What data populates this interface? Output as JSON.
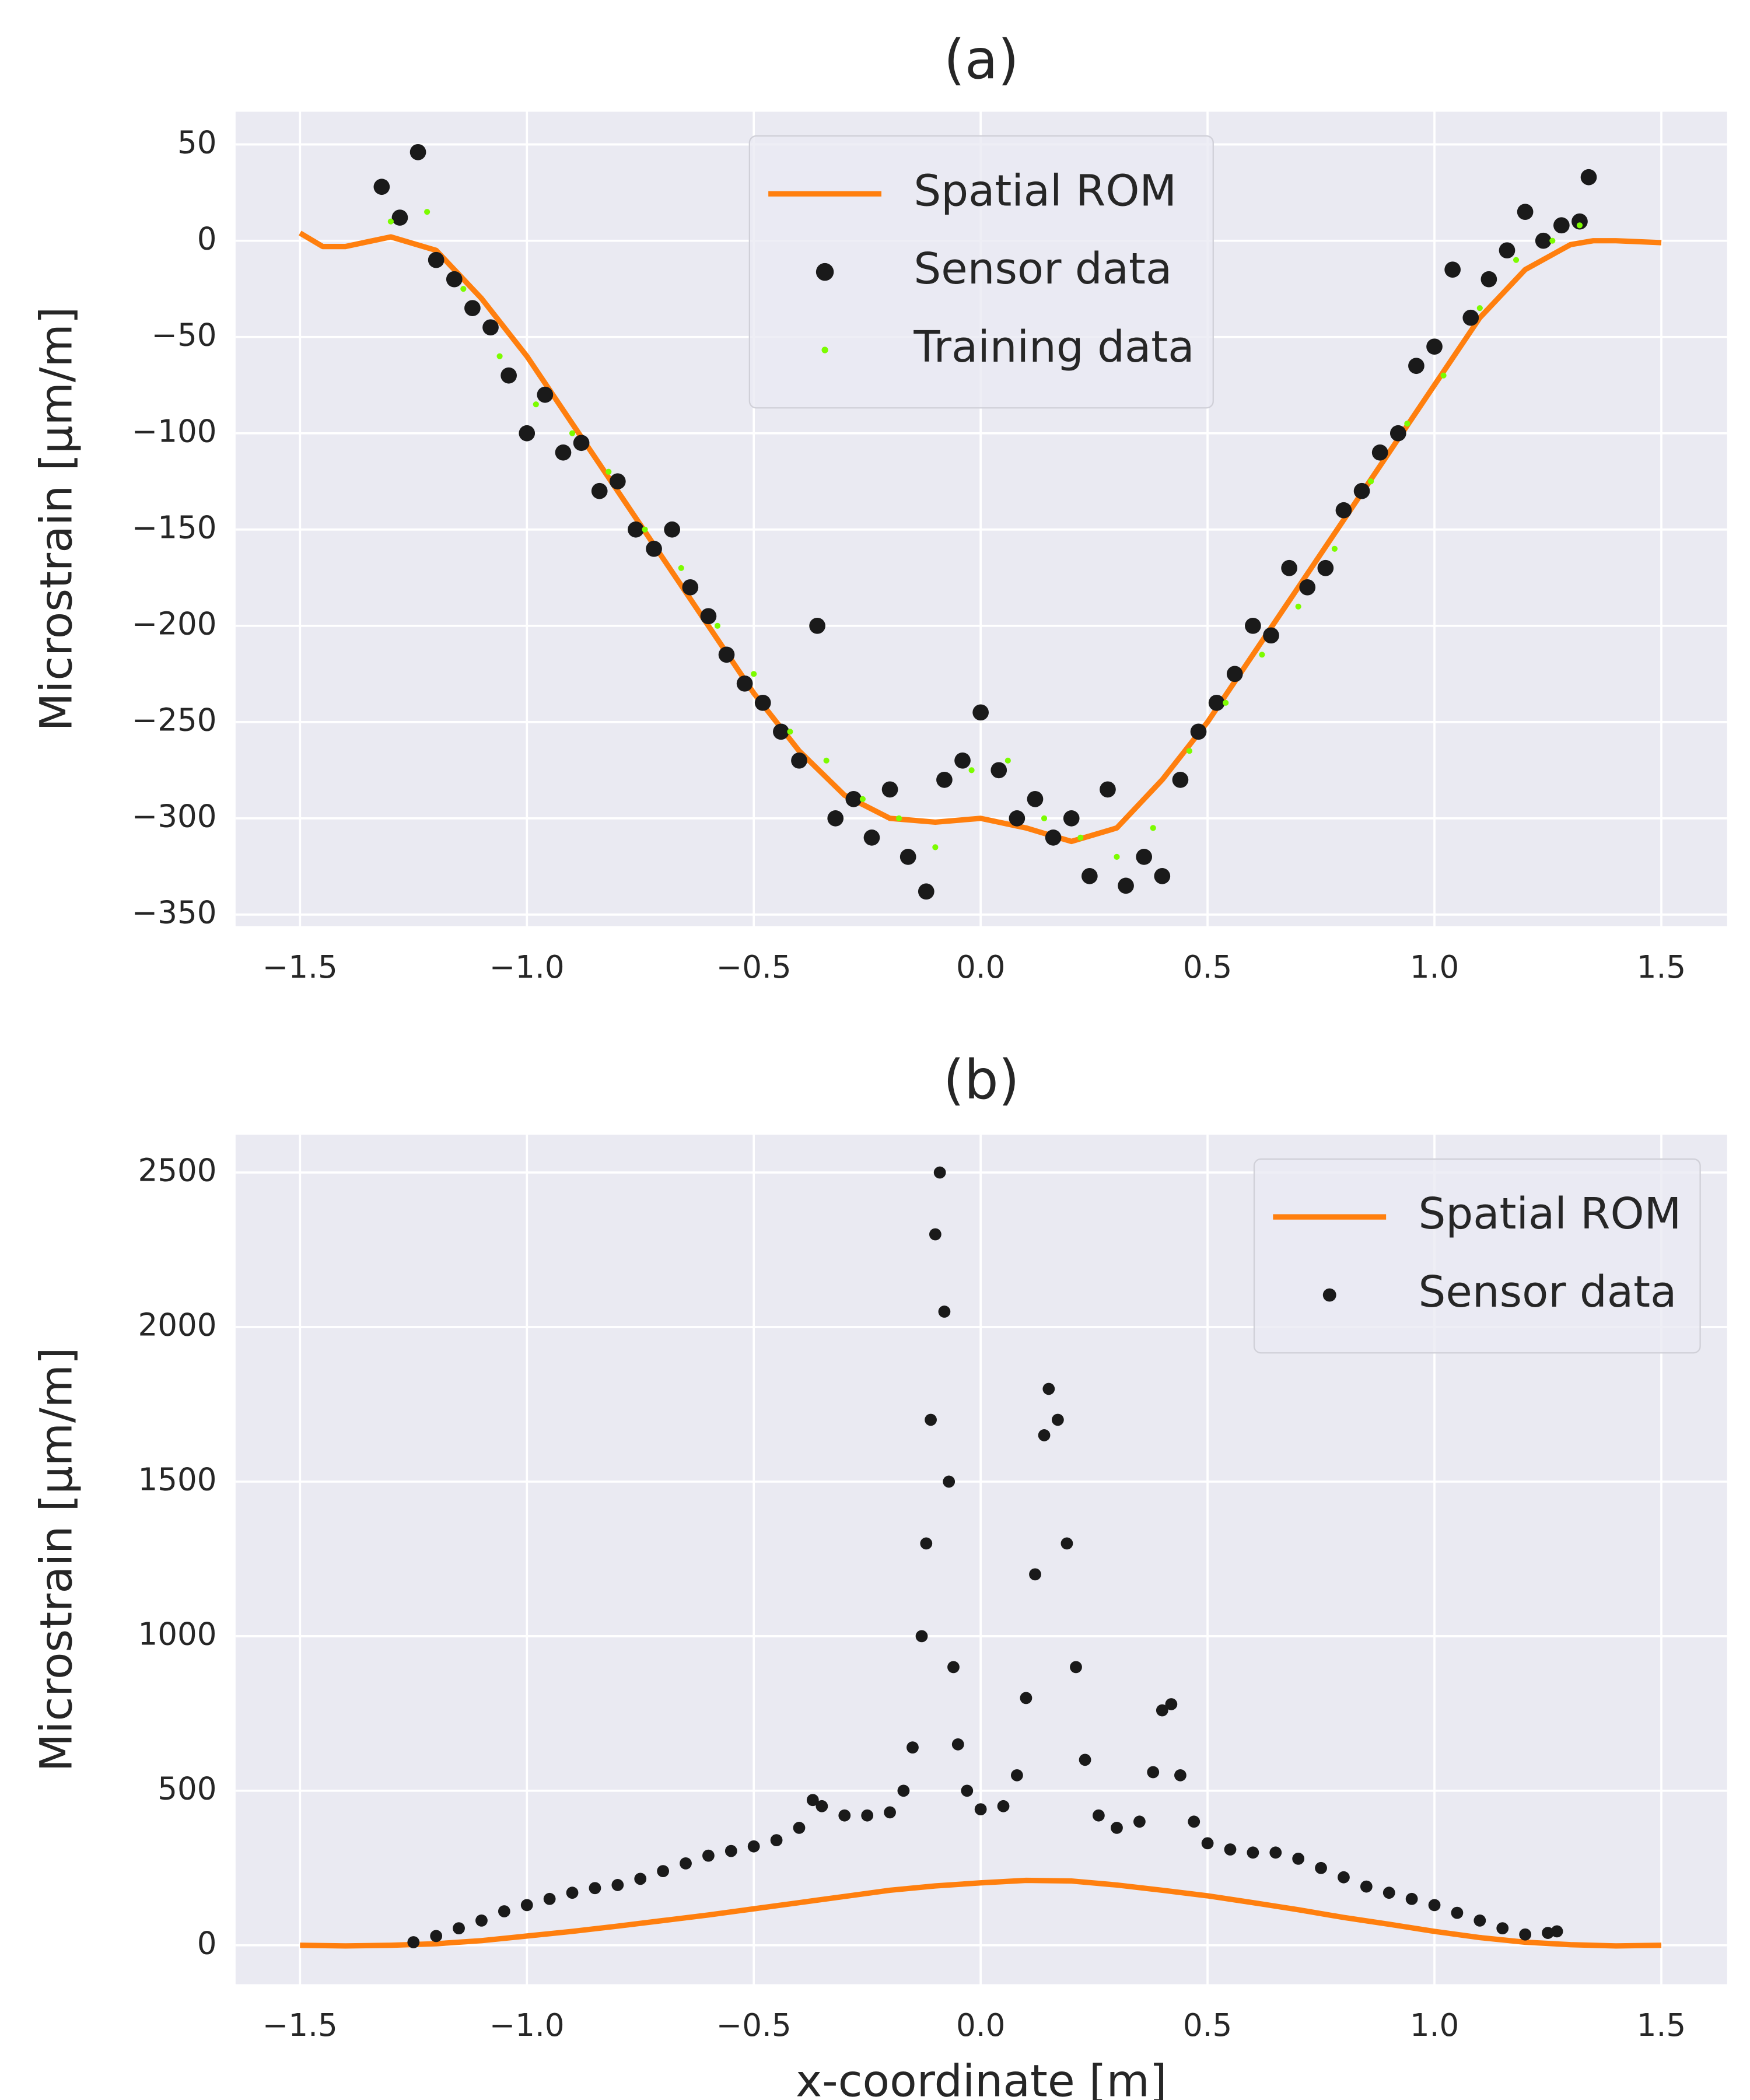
{
  "chart_data": [
    {
      "type": "line",
      "title": "(a)",
      "ylabel": "Microstrain [µm/m]",
      "grid": true,
      "legend": "upper center",
      "xlim": [
        -1.642,
        1.645
      ],
      "ylim": [
        -356,
        67
      ],
      "xticks": [
        {
          "value": -1.5,
          "label": "−1.5"
        },
        {
          "value": -1.0,
          "label": "−1.0"
        },
        {
          "value": -0.5,
          "label": "−0.5"
        },
        {
          "value": 0,
          "label": "0.0"
        },
        0.5,
        {
          "value": 1.0,
          "label": "1.0"
        },
        1.5
      ],
      "yticks": [
        {
          "value": -350,
          "label": "−350"
        },
        {
          "value": -300,
          "label": "−300"
        },
        {
          "value": -250,
          "label": "−250"
        },
        {
          "value": -200,
          "label": "−200"
        },
        {
          "value": -150,
          "label": "−150"
        },
        {
          "value": -100,
          "label": "−100"
        },
        {
          "value": -50,
          "label": "−50"
        },
        0,
        50
      ],
      "series": [
        {
          "name": "Spatial ROM",
          "kind": "line",
          "color": "#ff7f0e",
          "x": [
            -1.5,
            -1.45,
            -1.4,
            -1.3,
            -1.2,
            -1.1,
            -1.0,
            -0.9,
            -0.8,
            -0.7,
            -0.6,
            -0.5,
            -0.4,
            -0.3,
            -0.2,
            -0.1,
            0,
            0.1,
            0.2,
            0.3,
            0.4,
            0.5,
            0.6,
            0.7,
            0.8,
            0.9,
            1.0,
            1.1,
            1.2,
            1.3,
            1.35,
            1.4,
            1.5
          ],
          "values": [
            4,
            -3,
            -3,
            2,
            -5,
            -30,
            -60,
            -95,
            -130,
            -165,
            -200,
            -235,
            -265,
            -288,
            -300,
            -302,
            -300,
            -305,
            -312,
            -305,
            -280,
            -250,
            -215,
            -180,
            -145,
            -110,
            -75,
            -40,
            -15,
            -2,
            0,
            0,
            -1
          ]
        },
        {
          "name": "Sensor data",
          "kind": "scatter",
          "color": "#1a1a1a",
          "x": [
            -1.32,
            -1.28,
            -1.24,
            -1.2,
            -1.16,
            -1.12,
            -1.08,
            -1.04,
            -1.0,
            -0.96,
            -0.92,
            -0.88,
            -0.84,
            -0.8,
            -0.76,
            -0.72,
            -0.68,
            -0.64,
            -0.6,
            -0.56,
            -0.52,
            -0.48,
            -0.44,
            -0.4,
            -0.36,
            -0.32,
            -0.28,
            -0.24,
            -0.2,
            -0.16,
            -0.12,
            -0.08,
            -0.04,
            0,
            0.04,
            0.08,
            0.12,
            0.16,
            0.2,
            0.24,
            0.28,
            0.32,
            0.36,
            0.4,
            0.44,
            0.48,
            0.52,
            0.56,
            0.6,
            0.64,
            0.68,
            0.72,
            0.76,
            0.8,
            0.84,
            0.88,
            0.92,
            0.96,
            1.0,
            1.04,
            1.08,
            1.12,
            1.16,
            1.2,
            1.24,
            1.28,
            1.32,
            1.34
          ],
          "values": [
            28,
            12,
            46,
            -10,
            -20,
            -35,
            -45,
            -70,
            -100,
            -80,
            -110,
            -105,
            -130,
            -125,
            -150,
            -160,
            -150,
            -180,
            -195,
            -215,
            -230,
            -240,
            -255,
            -270,
            -200,
            -300,
            -290,
            -310,
            -285,
            -320,
            -338,
            -280,
            -270,
            -245,
            -275,
            -300,
            -290,
            -310,
            -300,
            -330,
            -285,
            -335,
            -320,
            -330,
            -280,
            -255,
            -240,
            -225,
            -200,
            -205,
            -170,
            -180,
            -170,
            -140,
            -130,
            -110,
            -100,
            -65,
            -55,
            -15,
            -40,
            -20,
            -5,
            15,
            0,
            8,
            10,
            33
          ]
        },
        {
          "name": "Training data",
          "kind": "scatter",
          "color": "#7cfc00",
          "x": [
            -1.3,
            -1.22,
            -1.14,
            -1.06,
            -0.98,
            -0.9,
            -0.82,
            -0.74,
            -0.66,
            -0.58,
            -0.5,
            -0.42,
            -0.34,
            -0.26,
            -0.18,
            -0.1,
            -0.02,
            0.06,
            0.14,
            0.22,
            0.3,
            0.38,
            0.46,
            0.54,
            0.62,
            0.7,
            0.78,
            0.86,
            0.94,
            1.02,
            1.1,
            1.18,
            1.26,
            1.32
          ],
          "values": [
            10,
            15,
            -25,
            -60,
            -85,
            -100,
            -120,
            -150,
            -170,
            -200,
            -225,
            -255,
            -270,
            -290,
            -300,
            -315,
            -275,
            -270,
            -300,
            -310,
            -320,
            -305,
            -265,
            -240,
            -215,
            -190,
            -160,
            -125,
            -95,
            -70,
            -35,
            -10,
            0,
            8
          ]
        }
      ]
    },
    {
      "type": "line",
      "title": "(b)",
      "xlabel": "x-coordinate [m]",
      "ylabel": "Microstrain [µm/m]",
      "grid": true,
      "legend": "upper right",
      "xlim": [
        -1.642,
        1.645
      ],
      "ylim": [
        -126,
        2622
      ],
      "xticks": [
        {
          "value": -1.5,
          "label": "−1.5"
        },
        {
          "value": -1.0,
          "label": "−1.0"
        },
        {
          "value": -0.5,
          "label": "−0.5"
        },
        {
          "value": 0,
          "label": "0.0"
        },
        0.5,
        {
          "value": 1.0,
          "label": "1.0"
        },
        1.5
      ],
      "yticks": [
        0,
        500,
        1000,
        1500,
        2000,
        2500
      ],
      "series": [
        {
          "name": "Spatial ROM",
          "kind": "line",
          "color": "#ff7f0e",
          "x": [
            -1.5,
            -1.4,
            -1.3,
            -1.2,
            -1.1,
            -1.0,
            -0.9,
            -0.8,
            -0.7,
            -0.6,
            -0.5,
            -0.4,
            -0.3,
            -0.2,
            -0.1,
            0,
            0.1,
            0.2,
            0.3,
            0.4,
            0.5,
            0.6,
            0.7,
            0.8,
            0.9,
            1.0,
            1.1,
            1.2,
            1.3,
            1.4,
            1.5
          ],
          "values": [
            0,
            -2,
            0,
            5,
            15,
            30,
            45,
            62,
            80,
            98,
            118,
            138,
            158,
            178,
            192,
            202,
            210,
            208,
            195,
            178,
            160,
            138,
            115,
            90,
            68,
            45,
            25,
            10,
            2,
            -2,
            0
          ]
        },
        {
          "name": "Sensor data",
          "kind": "scatter",
          "color": "#1a1a1a",
          "x": [
            -1.25,
            -1.2,
            -1.15,
            -1.1,
            -1.05,
            -1.0,
            -0.95,
            -0.9,
            -0.85,
            -0.8,
            -0.75,
            -0.7,
            -0.65,
            -0.6,
            -0.55,
            -0.5,
            -0.45,
            -0.4,
            -0.37,
            -0.35,
            -0.3,
            -0.25,
            -0.2,
            -0.17,
            -0.15,
            -0.13,
            -0.12,
            -0.11,
            -0.1,
            -0.09,
            -0.08,
            -0.07,
            -0.06,
            -0.05,
            -0.03,
            0,
            0.05,
            0.08,
            0.1,
            0.12,
            0.14,
            0.15,
            0.17,
            0.19,
            0.21,
            0.23,
            0.26,
            0.3,
            0.35,
            0.38,
            0.4,
            0.42,
            0.44,
            0.47,
            0.5,
            0.55,
            0.6,
            0.65,
            0.7,
            0.75,
            0.8,
            0.85,
            0.9,
            0.95,
            1.0,
            1.05,
            1.1,
            1.15,
            1.2,
            1.25,
            1.27
          ],
          "values": [
            10,
            30,
            55,
            80,
            110,
            130,
            150,
            170,
            185,
            195,
            215,
            240,
            265,
            290,
            305,
            320,
            340,
            380,
            470,
            450,
            420,
            420,
            430,
            500,
            640,
            1000,
            1300,
            1700,
            2300,
            2500,
            2050,
            1500,
            900,
            650,
            500,
            440,
            450,
            550,
            800,
            1200,
            1650,
            1800,
            1700,
            1300,
            900,
            600,
            420,
            380,
            400,
            560,
            760,
            780,
            550,
            400,
            330,
            310,
            300,
            300,
            280,
            250,
            220,
            190,
            170,
            150,
            130,
            105,
            80,
            55,
            35,
            40,
            45
          ]
        }
      ]
    }
  ]
}
